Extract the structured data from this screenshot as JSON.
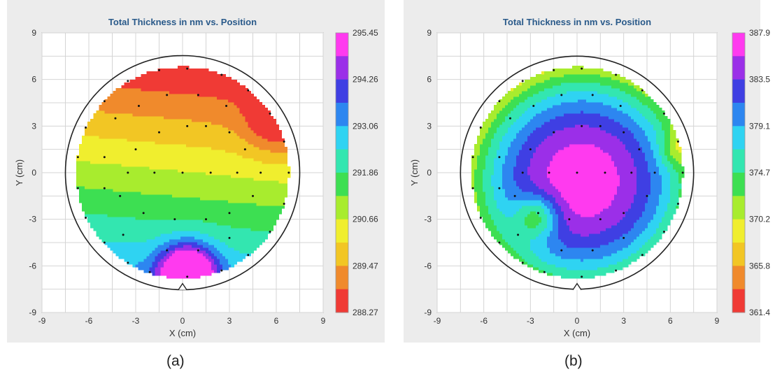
{
  "chart_data": [
    {
      "type": "heatmap",
      "panel_label": "(a)",
      "title": "Total Thickness in nm vs. Position",
      "xlabel": "X (cm)",
      "ylabel": "Y (cm)",
      "xlim": [
        -9,
        9
      ],
      "ylim": [
        -9,
        9
      ],
      "xticks": [
        "-9",
        "-6",
        "-3",
        "0",
        "3",
        "6",
        "9"
      ],
      "yticks": [
        "9",
        "6",
        "3",
        "0",
        "-3",
        "-6",
        "-9"
      ],
      "grid": true,
      "colorbar": {
        "placement": "right",
        "labels": [
          "295.45",
          "294.26",
          "293.06",
          "291.86",
          "290.66",
          "289.47",
          "288.27"
        ],
        "min": 288.27,
        "max": 295.45,
        "colors": [
          "#ff3aef",
          "#9b2fe8",
          "#3f3fe3",
          "#2d86f0",
          "#2fd3f2",
          "#33e6b0",
          "#3ddf52",
          "#a8ec2e",
          "#f0ee2e",
          "#f2c624",
          "#f08a2c",
          "#f03a35"
        ]
      },
      "wafer_radius_cm": 7.5,
      "measured_region_radius_cm": 6.8,
      "model": {
        "base": 290.7,
        "gy": -0.36,
        "gx": -0.035,
        "dip_amp": 5.0,
        "dip_x": 0.3,
        "dip_y": -6.4,
        "dip_sigma": 1.2,
        "edge_amp": -1.3,
        "edge_x": 6.0,
        "edge_y": 3.2,
        "edge_sigma": 1.4
      },
      "sample_points": [
        [
          0.3,
          6.7
        ],
        [
          2.5,
          6.3
        ],
        [
          4.2,
          5.3
        ],
        [
          5.6,
          3.8
        ],
        [
          6.5,
          2.0
        ],
        [
          6.8,
          0
        ],
        [
          6.5,
          -2.0
        ],
        [
          5.6,
          -3.8
        ],
        [
          4.2,
          -5.3
        ],
        [
          2.5,
          -6.3
        ],
        [
          0.3,
          -6.7
        ],
        [
          -2.1,
          -6.4
        ],
        [
          -3.5,
          -5.8
        ],
        [
          -5.0,
          -4.5
        ],
        [
          -6.2,
          -2.9
        ],
        [
          -6.7,
          -1.0
        ],
        [
          -6.7,
          1.0
        ],
        [
          -6.2,
          2.9
        ],
        [
          -5.0,
          4.6
        ],
        [
          -3.5,
          5.9
        ],
        [
          -1.5,
          6.6
        ],
        [
          -4.3,
          3.5
        ],
        [
          -2.8,
          4.3
        ],
        [
          -1.0,
          5.0
        ],
        [
          1.0,
          5.0
        ],
        [
          2.8,
          4.3
        ],
        [
          -3.0,
          1.5
        ],
        [
          -1.5,
          2.6
        ],
        [
          0.3,
          3.0
        ],
        [
          1.5,
          3.0
        ],
        [
          3.0,
          2.6
        ],
        [
          4.0,
          1.5
        ],
        [
          -3.5,
          0
        ],
        [
          -1.8,
          0
        ],
        [
          0,
          0
        ],
        [
          1.8,
          0
        ],
        [
          3.5,
          0
        ],
        [
          5.0,
          0
        ],
        [
          -4.0,
          -1.5
        ],
        [
          -2.5,
          -2.6
        ],
        [
          -0.5,
          -3.0
        ],
        [
          1.5,
          -3.0
        ],
        [
          3.0,
          -2.6
        ],
        [
          4.5,
          -1.5
        ],
        [
          -3.8,
          -4.0
        ],
        [
          -1.0,
          -5.0
        ],
        [
          1.0,
          -5.0
        ],
        [
          3.0,
          -4.2
        ],
        [
          -5.0,
          -1.0
        ],
        [
          -5.0,
          1.0
        ]
      ]
    },
    {
      "type": "heatmap",
      "panel_label": "(b)",
      "title": "Total Thickness in nm vs. Position",
      "xlabel": "X (cm)",
      "ylabel": "Y (cm)",
      "xlim": [
        -9,
        9
      ],
      "ylim": [
        -9,
        9
      ],
      "xticks": [
        "-9",
        "-6",
        "-3",
        "0",
        "3",
        "6",
        "9"
      ],
      "yticks": [
        "9",
        "6",
        "3",
        "0",
        "-3",
        "-6",
        "-9"
      ],
      "grid": true,
      "colorbar": {
        "placement": "right",
        "labels": [
          "387.9",
          "383.5",
          "379.1",
          "374.7",
          "370.2",
          "365.8",
          "361.4"
        ],
        "min": 361.4,
        "max": 387.9,
        "colors": [
          "#ff3aef",
          "#9b2fe8",
          "#3f3fe3",
          "#2d86f0",
          "#2fd3f2",
          "#33e6b0",
          "#3ddf52",
          "#a8ec2e",
          "#f0ee2e",
          "#f2c624",
          "#f08a2c",
          "#f03a35"
        ]
      },
      "wafer_radius_cm": 7.5,
      "measured_region_radius_cm": 6.8,
      "model": {
        "center": 387.5,
        "cx": 0.3,
        "cy": -0.5,
        "k": 0.32,
        "notch_amp": 9.0,
        "notch_x": -2.6,
        "notch_y": -2.8,
        "notch_sigma": 1.0,
        "edge_amp": -4.0,
        "edge_x": 6.3,
        "edge_y": 1.5,
        "edge_sigma": 0.8
      },
      "sample_points": [
        [
          0.3,
          6.7
        ],
        [
          2.5,
          6.3
        ],
        [
          4.2,
          5.3
        ],
        [
          5.6,
          3.8
        ],
        [
          6.5,
          2.0
        ],
        [
          6.8,
          0
        ],
        [
          6.5,
          -2.0
        ],
        [
          5.6,
          -3.8
        ],
        [
          4.2,
          -5.3
        ],
        [
          2.5,
          -6.3
        ],
        [
          0.3,
          -6.7
        ],
        [
          -2.1,
          -6.4
        ],
        [
          -3.5,
          -5.8
        ],
        [
          -5.0,
          -4.5
        ],
        [
          -6.2,
          -2.9
        ],
        [
          -6.7,
          -1.0
        ],
        [
          -6.7,
          1.0
        ],
        [
          -6.2,
          2.9
        ],
        [
          -5.0,
          4.6
        ],
        [
          -3.5,
          5.9
        ],
        [
          -1.5,
          6.6
        ],
        [
          -4.3,
          3.5
        ],
        [
          -2.8,
          4.3
        ],
        [
          -1.0,
          5.0
        ],
        [
          1.0,
          5.0
        ],
        [
          2.8,
          4.3
        ],
        [
          -3.0,
          1.5
        ],
        [
          -1.5,
          2.6
        ],
        [
          0.3,
          3.0
        ],
        [
          1.5,
          3.0
        ],
        [
          3.0,
          2.6
        ],
        [
          4.0,
          1.5
        ],
        [
          -3.5,
          0
        ],
        [
          -1.8,
          0
        ],
        [
          0,
          0
        ],
        [
          1.8,
          0
        ],
        [
          3.5,
          0
        ],
        [
          5.0,
          0
        ],
        [
          -4.0,
          -1.5
        ],
        [
          -2.5,
          -2.6
        ],
        [
          -0.5,
          -3.0
        ],
        [
          1.5,
          -3.0
        ],
        [
          3.0,
          -2.6
        ],
        [
          4.5,
          -1.5
        ],
        [
          -3.8,
          -4.0
        ],
        [
          -1.0,
          -5.0
        ],
        [
          1.0,
          -5.0
        ],
        [
          3.0,
          -4.2
        ],
        [
          -5.0,
          -1.0
        ],
        [
          -5.0,
          1.0
        ]
      ]
    }
  ]
}
